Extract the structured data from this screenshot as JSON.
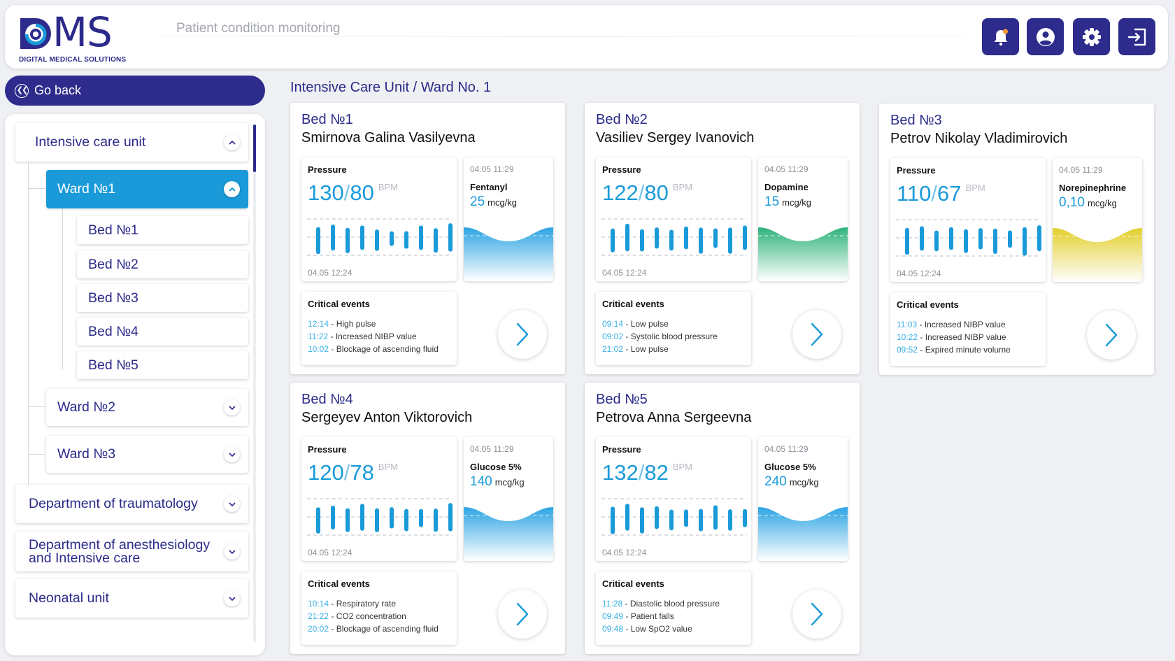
{
  "header": {
    "logo_text": "MS",
    "logo_subtitle": "DIGITAL MEDICAL SOLUTIONS",
    "title": "Patient condition monitoring",
    "buttons": [
      {
        "icon": "bell-icon"
      },
      {
        "icon": "user-icon"
      },
      {
        "icon": "gear-icon"
      },
      {
        "icon": "logout-icon"
      }
    ]
  },
  "sidebar": {
    "go_back": "Go back",
    "units": [
      {
        "label": "Intensive care unit",
        "expanded": true
      },
      {
        "label": "Department of traumatology",
        "expanded": false
      },
      {
        "label": "Department of anesthesiology and Intensive care",
        "expanded": false
      },
      {
        "label": "Neonatal unit",
        "expanded": false
      }
    ],
    "wards": [
      {
        "label": "Ward №1",
        "expanded": true,
        "active": true
      },
      {
        "label": "Ward №2",
        "expanded": false
      },
      {
        "label": "Ward №3",
        "expanded": false
      }
    ],
    "beds": [
      "Bed №1",
      "Bed №2",
      "Bed №3",
      "Bed №4",
      "Bed №5"
    ]
  },
  "main": {
    "breadcrumb": "Intensive Care Unit / Ward No. 1",
    "labels": {
      "pressure": "Pressure",
      "unit_bpm": "BPM",
      "critical_events": "Critical events",
      "date_pressure": "04.05 12:24",
      "date_med": "04.05 11:29",
      "med_unit": "mcg/kg"
    },
    "beds": [
      {
        "bed": "Bed №1",
        "patient": "Smirnova Galina Vasilyevna",
        "systolic": "130",
        "diastolic": "80",
        "pulse_levels": [
          0.6,
          0.55,
          0.55,
          0.5,
          0.42,
          0.2,
          0.3,
          0.5,
          0.52,
          0.62
        ],
        "med_name": "Fentanyl",
        "med_value": "25",
        "wave_color": "blue",
        "events": [
          {
            "time": "12:14",
            "text": "High pulse"
          },
          {
            "time": "11:22",
            "text": "Increased NIBP value"
          },
          {
            "time": "10:02",
            "text": "Blockage of ascending fluid"
          }
        ]
      },
      {
        "bed": "Bed №2",
        "patient": "Vasiliev Sergey Ivanovich",
        "systolic": "122",
        "diastolic": "80",
        "pulse_levels": [
          0.5,
          0.6,
          0.45,
          0.4,
          0.4,
          0.45,
          0.58,
          0.35,
          0.58,
          0.5
        ],
        "med_name": "Dopamine",
        "med_value": "15",
        "wave_color": "green",
        "events": [
          {
            "time": "09:14",
            "text": "Low pulse"
          },
          {
            "time": "09:02",
            "text": "Systolic blood pressure"
          },
          {
            "time": "21:02",
            "text": "Low pulse"
          }
        ]
      },
      {
        "bed": "Bed №3",
        "patient": "Petrov Nikolay Vladimirovich",
        "systolic": "110",
        "diastolic": "67",
        "pulse_levels": [
          0.6,
          0.5,
          0.4,
          0.45,
          0.5,
          0.4,
          0.55,
          0.28,
          0.65,
          0.55
        ],
        "med_name": "Norepinephrine",
        "med_value": "0,10",
        "wave_color": "yellow",
        "events": [
          {
            "time": "11:03",
            "text": "Increased NIBP value"
          },
          {
            "time": "10:22",
            "text": "Increased NIBP value"
          },
          {
            "time": "09:52",
            "text": "Expired minute volume"
          }
        ]
      },
      {
        "bed": "Bed №4",
        "patient": "Sergeyev Anton Viktorovich",
        "systolic": "120",
        "diastolic": "78",
        "pulse_levels": [
          0.58,
          0.48,
          0.5,
          0.58,
          0.5,
          0.4,
          0.45,
          0.3,
          0.48,
          0.62
        ],
        "med_name": "Glucose 5%",
        "med_value": "140",
        "wave_color": "blue",
        "events": [
          {
            "time": "10:14",
            "text": "Respiratory rate"
          },
          {
            "time": "21:22",
            "text": "CO2 concentration"
          },
          {
            "time": "20:02",
            "text": "Blockage of ascending fluid"
          }
        ]
      },
      {
        "bed": "Bed №5",
        "patient": "Petrova Anna Sergeevna",
        "systolic": "132",
        "diastolic": "82",
        "pulse_levels": [
          0.62,
          0.58,
          0.58,
          0.45,
          0.4,
          0.28,
          0.45,
          0.5,
          0.42,
          0.3
        ],
        "med_name": "Glucose 5%",
        "med_value": "240",
        "wave_color": "blue",
        "events": [
          {
            "time": "11:28",
            "text": "Diastolic blood pressure"
          },
          {
            "time": "09:49",
            "text": "Patient falls"
          },
          {
            "time": "09:48",
            "text": "Low SpO2 value"
          }
        ]
      }
    ]
  },
  "colors": {
    "brand": "#2d2b8c",
    "accent": "#1a9ad9",
    "wave_blue": "#2ea5e3",
    "wave_green": "#2fb27b",
    "wave_yellow": "#e3cf2e"
  }
}
